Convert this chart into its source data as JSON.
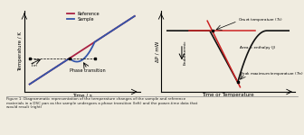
{
  "fig_width": 3.36,
  "fig_height": 1.5,
  "dpi": 100,
  "bg_color": "#f0ece0",
  "left_title": "Temperature / K",
  "left_xlabel": "Time / s",
  "right_title": "ΔP / mW",
  "right_xlabel": "Time or Temperature",
  "legend_reference": "Reference",
  "legend_sample": "Sample",
  "ref_color": "#aa2244",
  "sample_color": "#3355aa",
  "dsc_color": "#111111",
  "dsc_onset_color": "#cc2222",
  "phase_transition_label": "Phase transition",
  "tm_label": "$T_m$",
  "endothermic_label": "Endothermic",
  "onset_label": "Onset temperature ($T_o$)",
  "area_label": "Area = enthalpy (J)",
  "peak_label": "Peak maximum temperature ($T_m$)",
  "caption": "Figure 1: Diagrammatic representation of the temperature changes of the sample and reference\nmaterials in a DSC pan as the sample undergoes a phase transition (left) and the power-time data that\nwould result (right)"
}
